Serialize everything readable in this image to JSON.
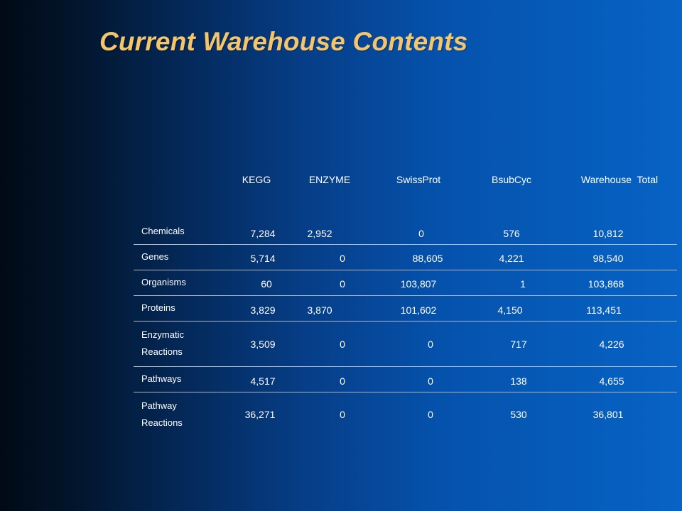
{
  "slide": {
    "title": "Current Warehouse Contents"
  },
  "table": {
    "columns": [
      "KEGG",
      "ENZYME",
      "SwissProt",
      "BsubCyc",
      "Warehouse  Total"
    ],
    "rows": [
      {
        "label": [
          "Chemicals"
        ],
        "values": [
          "7,284",
          "2,952",
          "0",
          "576",
          "10,812"
        ]
      },
      {
        "label": [
          "Genes"
        ],
        "values": [
          "5,714",
          "0",
          "88,605",
          "4,221",
          "98,540"
        ]
      },
      {
        "label": [
          "Organisms"
        ],
        "values": [
          "60",
          "0",
          "103,807",
          "1",
          "103,868"
        ]
      },
      {
        "label": [
          "Proteins"
        ],
        "values": [
          "3,829",
          "3,870",
          "101,602",
          "4,150",
          "113,451"
        ]
      },
      {
        "label": [
          "Enzymatic",
          "Reactions"
        ],
        "values": [
          "3,509",
          "0",
          "0",
          "717",
          "4,226"
        ]
      },
      {
        "label": [
          "Pathways"
        ],
        "values": [
          "4,517",
          "0",
          "0",
          "138",
          "4,655"
        ]
      },
      {
        "label": [
          "Pathway",
          "Reactions"
        ],
        "values": [
          "36,271",
          "0",
          "0",
          "530",
          "36,801"
        ]
      }
    ]
  }
}
